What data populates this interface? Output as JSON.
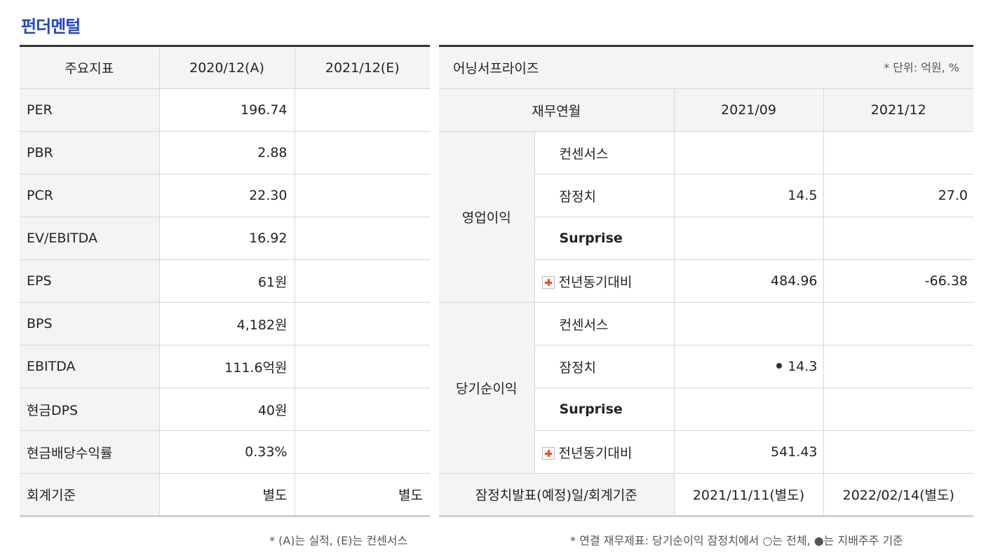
{
  "section_title": "펀더멘털",
  "indicators": {
    "headers": [
      "주요지표",
      "2020/12(A)",
      "2021/12(E)"
    ],
    "rows": [
      {
        "label": "PER",
        "a": "196.74",
        "e": ""
      },
      {
        "label": "PBR",
        "a": "2.88",
        "e": ""
      },
      {
        "label": "PCR",
        "a": "22.30",
        "e": ""
      },
      {
        "label": "EV/EBITDA",
        "a": "16.92",
        "e": ""
      },
      {
        "label": "EPS",
        "a": "61원",
        "e": ""
      },
      {
        "label": "BPS",
        "a": "4,182원",
        "e": ""
      },
      {
        "label": "EBITDA",
        "a": "111.6억원",
        "e": ""
      },
      {
        "label": "현금DPS",
        "a": "40원",
        "e": ""
      },
      {
        "label": "현금배당수익률",
        "a": "0.33%",
        "e": ""
      },
      {
        "label": "회계기준",
        "a": "별도",
        "e": "별도"
      }
    ],
    "footnote": "* (A)는 실적, (E)는 컨센서스"
  },
  "surprise": {
    "title": "어닝서프라이즈",
    "unit": "* 단위: 억원, %",
    "col_header": "재무연월",
    "periods": [
      "2021/09",
      "2021/12"
    ],
    "groups": [
      {
        "name": "영업이익",
        "rows": [
          {
            "label": "컨센서스",
            "v1": "",
            "v2": ""
          },
          {
            "label": "잠정치",
            "v1": "14.5",
            "v2": "27.0"
          },
          {
            "label": "Surprise",
            "v1": "",
            "v2": ""
          },
          {
            "label": "전년동기대비",
            "v1": "484.96",
            "v2": "-66.38"
          }
        ]
      },
      {
        "name": "당기순이익",
        "rows": [
          {
            "label": "컨센서스",
            "v1": "",
            "v2": ""
          },
          {
            "label": "잠정치",
            "v1": "14.3",
            "v2": ""
          },
          {
            "label": "Surprise",
            "v1": "",
            "v2": ""
          },
          {
            "label": "전년동기대비",
            "v1": "541.43",
            "v2": ""
          }
        ]
      }
    ],
    "footer_label": "잠정치발표(예정)일/회계기준",
    "footer_values": [
      "2021/11/11(별도)",
      "2022/02/14(별도)"
    ],
    "footnote": "* 연결 재무제표: 당기순이익 잠정치에서 ○는 전체, ●는 지배주주 기준"
  }
}
